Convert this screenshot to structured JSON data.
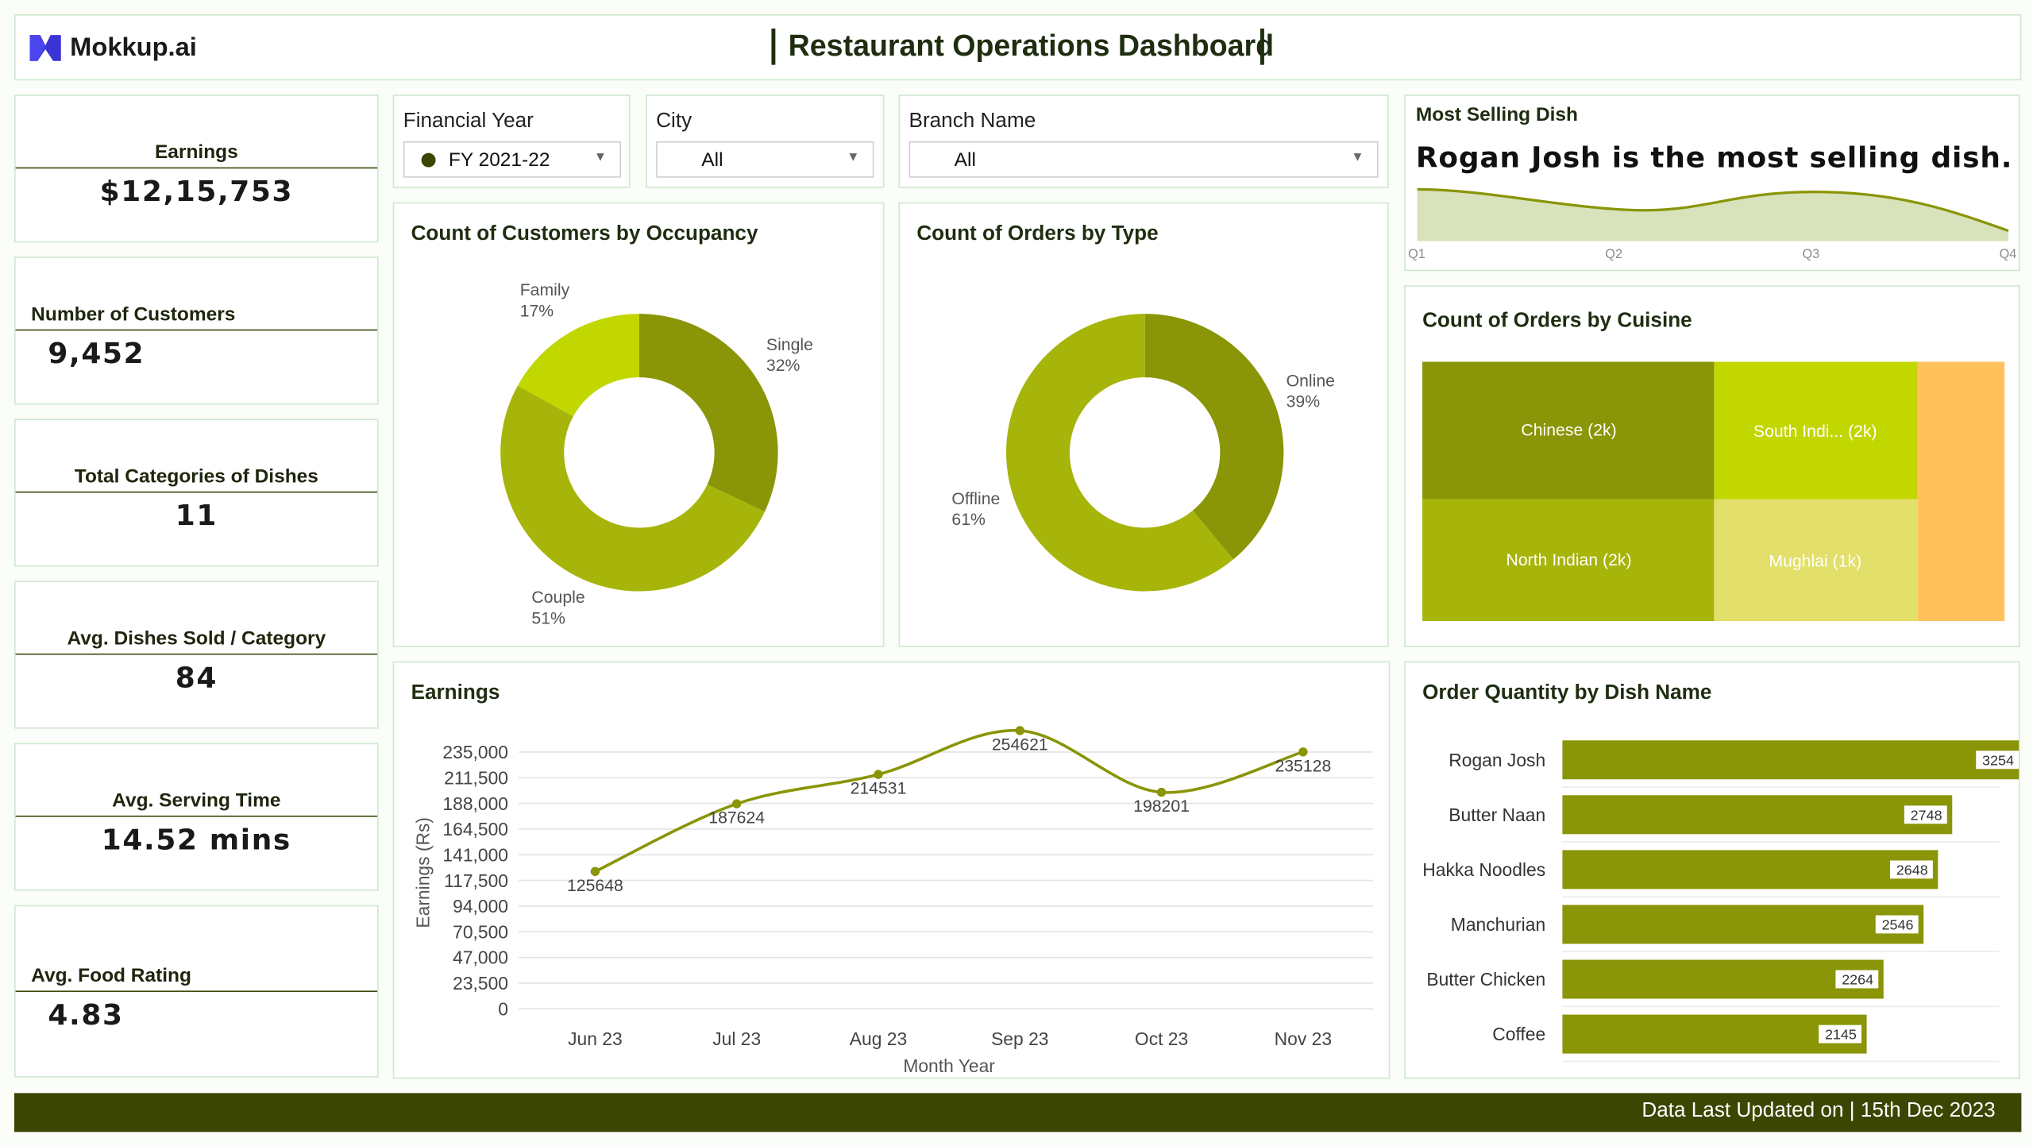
{
  "header": {
    "logo_text": "Mokkup.ai",
    "title": "Restaurant Operations Dashboard"
  },
  "kpis": [
    {
      "label": "Earnings",
      "value": "$12,15,753"
    },
    {
      "label": "Number of Customers",
      "value": "9,452"
    },
    {
      "label": "Total Categories of Dishes",
      "value": "11"
    },
    {
      "label": "Avg. Dishes Sold / Category",
      "value": "84"
    },
    {
      "label": "Avg. Serving Time",
      "value": "14.52 mins"
    },
    {
      "label": "Avg. Food Rating",
      "value": "4.83"
    }
  ],
  "filters": {
    "financial_year": {
      "label": "Financial Year",
      "value": "FY 2021-22"
    },
    "city": {
      "label": "City",
      "value": "All"
    },
    "branch": {
      "label": "Branch Name",
      "value": "All"
    }
  },
  "most_selling": {
    "title": "Most Selling Dish",
    "text": "Rogan Josh is the most selling dish.",
    "quarters": [
      "Q1",
      "Q2",
      "Q3",
      "Q4"
    ]
  },
  "colors": {
    "dark_olive": "#8a9507",
    "olive": "#a7b409",
    "lime": "#c2d600",
    "pale": "#e2df6a",
    "orange": "#ffc15c",
    "footer": "#3c4603"
  },
  "chart_data": [
    {
      "type": "pie",
      "title": "Count of Customers by Occupancy",
      "slices": [
        {
          "name": "Single",
          "value": 32,
          "label": "32%"
        },
        {
          "name": "Couple",
          "value": 51,
          "label": "51%"
        },
        {
          "name": "Family",
          "value": 17,
          "label": "17%"
        }
      ]
    },
    {
      "type": "pie",
      "title": "Count of Orders by Type",
      "slices": [
        {
          "name": "Online",
          "value": 39,
          "label": "39%"
        },
        {
          "name": "Offline",
          "value": 61,
          "label": "61%"
        }
      ]
    },
    {
      "type": "heatmap",
      "title": "Count of Orders by Cuisine",
      "cells": [
        {
          "label": "Chinese (2k)"
        },
        {
          "label": "South Indi... (2k)"
        },
        {
          "label": "North Indian (2k)"
        },
        {
          "label": "Mughlai (1k)"
        }
      ]
    },
    {
      "type": "line",
      "title": "Earnings",
      "xlabel": "Month Year",
      "ylabel": "Earnings (Rs)",
      "categories": [
        "Jun 23",
        "Jul 23",
        "Aug 23",
        "Sep 23",
        "Oct 23",
        "Nov 23"
      ],
      "values": [
        125648,
        187624,
        214531,
        254621,
        198201,
        235128
      ],
      "yticks": [
        "0",
        "23,500",
        "47,000",
        "70,500",
        "94,000",
        "117,500",
        "141,000",
        "164,500",
        "188,000",
        "211,500",
        "235,000"
      ],
      "ylim": [
        0,
        235000
      ]
    },
    {
      "type": "bar",
      "title": "Order Quantity by Dish Name",
      "categories": [
        "Rogan Josh",
        "Butter Naan",
        "Hakka Noodles",
        "Manchurian",
        "Butter Chicken",
        "Coffee"
      ],
      "values": [
        3254,
        2748,
        2648,
        2546,
        2264,
        2145
      ]
    }
  ],
  "footer": {
    "text": "Data Last Updated on | 15th Dec 2023"
  }
}
